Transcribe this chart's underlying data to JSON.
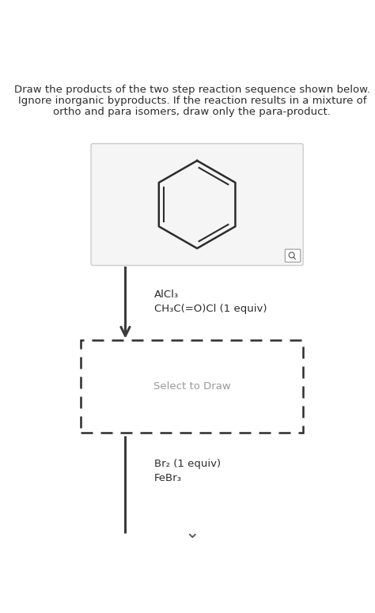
{
  "title_line1": "Draw the products of the two step reaction sequence shown below.",
  "title_line2": "Ignore inorganic byproducts. If the reaction results in a mixture of",
  "title_line3": "ortho and para isomers, draw only the para-product.",
  "background_color": "#ffffff",
  "text_color": "#2c2c2c",
  "reagent1_line1": "AlCl₃",
  "reagent1_line2": "CH₃C(=O)Cl (1 equiv)",
  "reagent2_line1": "Br₂ (1 equiv)",
  "reagent2_line2": "FeBr₃",
  "select_to_draw": "Select to Draw",
  "arrow_color": "#3c3c3c",
  "dashed_box_color": "#2c2c2c",
  "chevron": "∨"
}
